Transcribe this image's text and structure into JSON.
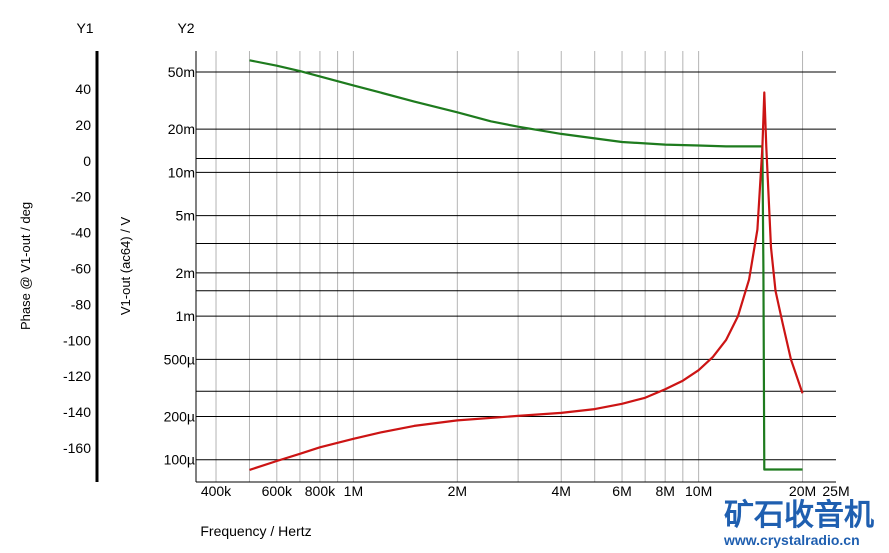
{
  "chart_data": {
    "type": "line",
    "xlabel": "Frequency / Hertz",
    "x_scale": "log",
    "xlim": [
      350000,
      25000000
    ],
    "x_tick_labels": [
      {
        "v": 400000,
        "label": "400k"
      },
      {
        "v": 600000,
        "label": "600k"
      },
      {
        "v": 800000,
        "label": "800k"
      },
      {
        "v": 1000000,
        "label": "1M"
      },
      {
        "v": 2000000,
        "label": "2M"
      },
      {
        "v": 4000000,
        "label": "4M"
      },
      {
        "v": 6000000,
        "label": "6M"
      },
      {
        "v": 8000000,
        "label": "8M"
      },
      {
        "v": 10000000,
        "label": "10M"
      },
      {
        "v": 20000000,
        "label": "20M"
      },
      {
        "v": 25000000,
        "label": "25M"
      }
    ],
    "y1": {
      "heading": "Y1",
      "label": "Phase @ V1-out / deg",
      "ticks": [
        40,
        20,
        0,
        -20,
        -40,
        -60,
        -80,
        -100,
        -120,
        -140,
        -160
      ]
    },
    "y2": {
      "heading": "Y2",
      "label": "V1-out (ac64) / V",
      "scale": "log",
      "ylim": [
        7e-05,
        0.07
      ],
      "ticks": [
        {
          "v": 0.05,
          "label": "50m"
        },
        {
          "v": 0.02,
          "label": "20m"
        },
        {
          "v": 0.01,
          "label": "10m"
        },
        {
          "v": 0.005,
          "label": "5m"
        },
        {
          "v": 0.002,
          "label": "2m"
        },
        {
          "v": 0.001,
          "label": "1m"
        },
        {
          "v": 0.0005,
          "label": "500µ"
        },
        {
          "v": 0.0002,
          "label": "200µ"
        },
        {
          "v": 0.0001,
          "label": "100µ"
        }
      ]
    },
    "grid": true,
    "series": [
      {
        "axis": "y1",
        "color": "#1e7b1e",
        "points": [
          [
            500000,
            56
          ],
          [
            600000,
            53
          ],
          [
            700000,
            50
          ],
          [
            800000,
            47
          ],
          [
            1000000,
            42
          ],
          [
            1200000,
            38
          ],
          [
            1500000,
            33
          ],
          [
            2000000,
            27
          ],
          [
            2500000,
            22
          ],
          [
            3000000,
            19
          ],
          [
            4000000,
            15
          ],
          [
            5000000,
            12.5
          ],
          [
            6000000,
            10.5
          ],
          [
            8000000,
            9
          ],
          [
            10000000,
            8.5
          ],
          [
            12000000,
            8
          ],
          [
            15000000,
            8
          ],
          [
            15300000,
            8
          ],
          [
            15400000,
            -60
          ],
          [
            15500000,
            -172
          ],
          [
            20000000,
            -172
          ]
        ]
      },
      {
        "axis": "y2",
        "color": "#cc1414",
        "points": [
          [
            500000,
            8.5e-05
          ],
          [
            600000,
            9.8e-05
          ],
          [
            700000,
            0.00011
          ],
          [
            800000,
            0.000122
          ],
          [
            1000000,
            0.00014
          ],
          [
            1200000,
            0.000155
          ],
          [
            1500000,
            0.000172
          ],
          [
            2000000,
            0.000188
          ],
          [
            3000000,
            0.000202
          ],
          [
            4000000,
            0.000212
          ],
          [
            5000000,
            0.000225
          ],
          [
            6000000,
            0.000245
          ],
          [
            7000000,
            0.00027
          ],
          [
            8000000,
            0.00031
          ],
          [
            9000000,
            0.000355
          ],
          [
            10000000,
            0.00042
          ],
          [
            11000000,
            0.00052
          ],
          [
            12000000,
            0.00068
          ],
          [
            13000000,
            0.001
          ],
          [
            14000000,
            0.0018
          ],
          [
            14800000,
            0.004
          ],
          [
            15300000,
            0.015
          ],
          [
            15500000,
            0.036
          ],
          [
            15700000,
            0.015
          ],
          [
            16200000,
            0.003
          ],
          [
            16700000,
            0.0015
          ],
          [
            17500000,
            0.0009
          ],
          [
            18500000,
            0.0005
          ],
          [
            20000000,
            0.00029
          ]
        ]
      }
    ]
  },
  "watermark": {
    "cn": "矿石收音机",
    "url": "www.crystalradio.cn"
  }
}
